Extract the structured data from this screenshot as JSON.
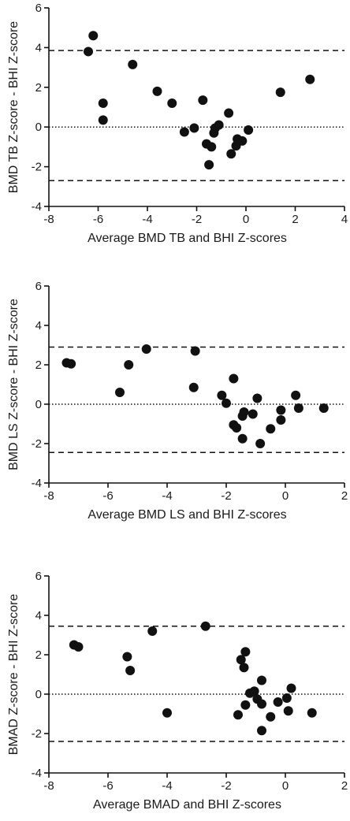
{
  "chart_data": [
    {
      "type": "scatter",
      "title": "",
      "xlabel": "Average BMD TB and BHI Z-scores",
      "ylabel": "BMD TB Z-score - BHI Z-score",
      "xlim": [
        -8,
        4
      ],
      "ylim": [
        -4,
        6
      ],
      "xticks": [
        -8,
        -6,
        -4,
        -2,
        0,
        2,
        4
      ],
      "yticks": [
        -4,
        -2,
        0,
        2,
        4,
        6
      ],
      "grid": false,
      "reference_lines": [
        {
          "y": 3.85,
          "style": "dashed"
        },
        {
          "y": 0,
          "style": "dotted"
        },
        {
          "y": -2.7,
          "style": "dashed"
        }
      ],
      "points": [
        {
          "x": -6.4,
          "y": 3.8
        },
        {
          "x": -6.2,
          "y": 4.6
        },
        {
          "x": -5.8,
          "y": 1.2
        },
        {
          "x": -5.8,
          "y": 0.35
        },
        {
          "x": -4.6,
          "y": 3.15
        },
        {
          "x": -3.6,
          "y": 1.8
        },
        {
          "x": -3.0,
          "y": 1.2
        },
        {
          "x": -2.5,
          "y": -0.25
        },
        {
          "x": -2.1,
          "y": -0.05
        },
        {
          "x": -1.75,
          "y": 1.35
        },
        {
          "x": -1.6,
          "y": -0.85
        },
        {
          "x": -1.5,
          "y": -1.9
        },
        {
          "x": -1.4,
          "y": -1.0
        },
        {
          "x": -1.3,
          "y": -0.3
        },
        {
          "x": -1.25,
          "y": -0.05
        },
        {
          "x": -1.1,
          "y": 0.1
        },
        {
          "x": -0.7,
          "y": 0.7
        },
        {
          "x": -0.6,
          "y": -1.35
        },
        {
          "x": -0.4,
          "y": -0.95
        },
        {
          "x": -0.35,
          "y": -0.6
        },
        {
          "x": -0.15,
          "y": -0.7
        },
        {
          "x": 0.1,
          "y": -0.15
        },
        {
          "x": 1.4,
          "y": 1.75
        },
        {
          "x": 2.6,
          "y": 2.4
        }
      ]
    },
    {
      "type": "scatter",
      "title": "",
      "xlabel": "Average BMD LS and BHI Z-scores",
      "ylabel": "BMD LS Z-score - BHI Z-score",
      "xlim": [
        -8,
        2
      ],
      "ylim": [
        -4,
        6
      ],
      "xticks": [
        -8,
        -6,
        -4,
        -2,
        0,
        2
      ],
      "yticks": [
        -4,
        -2,
        0,
        2,
        4,
        6
      ],
      "grid": false,
      "reference_lines": [
        {
          "y": 2.9,
          "style": "dashed"
        },
        {
          "y": 0,
          "style": "dotted"
        },
        {
          "y": -2.45,
          "style": "dashed"
        }
      ],
      "points": [
        {
          "x": -7.4,
          "y": 2.1
        },
        {
          "x": -7.25,
          "y": 2.05
        },
        {
          "x": -5.6,
          "y": 0.6
        },
        {
          "x": -5.3,
          "y": 2.0
        },
        {
          "x": -4.7,
          "y": 2.8
        },
        {
          "x": -3.1,
          "y": 0.85
        },
        {
          "x": -3.05,
          "y": 2.7
        },
        {
          "x": -2.15,
          "y": 0.45
        },
        {
          "x": -2.0,
          "y": 0.05
        },
        {
          "x": -1.75,
          "y": 1.3
        },
        {
          "x": -1.75,
          "y": -1.05
        },
        {
          "x": -1.65,
          "y": -1.2
        },
        {
          "x": -1.45,
          "y": -0.6
        },
        {
          "x": -1.4,
          "y": -0.4
        },
        {
          "x": -1.45,
          "y": -1.75
        },
        {
          "x": -1.1,
          "y": -0.5
        },
        {
          "x": -0.95,
          "y": 0.3
        },
        {
          "x": -0.85,
          "y": -2.0
        },
        {
          "x": -0.5,
          "y": -1.25
        },
        {
          "x": -0.15,
          "y": -0.3
        },
        {
          "x": -0.15,
          "y": -0.8
        },
        {
          "x": 0.35,
          "y": 0.45
        },
        {
          "x": 0.45,
          "y": -0.2
        },
        {
          "x": 1.3,
          "y": -0.2
        }
      ]
    },
    {
      "type": "scatter",
      "title": "",
      "xlabel": "Average BMAD and BHI Z-scores",
      "ylabel": "BMAD Z-score - BHI Z-score",
      "xlim": [
        -8,
        2
      ],
      "ylim": [
        -4,
        6
      ],
      "xticks": [
        -8,
        -6,
        -4,
        -2,
        0,
        2
      ],
      "yticks": [
        -4,
        -2,
        0,
        2,
        4,
        6
      ],
      "grid": false,
      "reference_lines": [
        {
          "y": 3.45,
          "style": "dashed"
        },
        {
          "y": 0,
          "style": "dotted"
        },
        {
          "y": -2.4,
          "style": "dashed"
        }
      ],
      "points": [
        {
          "x": -7.15,
          "y": 2.5
        },
        {
          "x": -7.0,
          "y": 2.4
        },
        {
          "x": -5.35,
          "y": 1.9
        },
        {
          "x": -5.25,
          "y": 1.2
        },
        {
          "x": -4.5,
          "y": 3.2
        },
        {
          "x": -4.0,
          "y": -0.95
        },
        {
          "x": -2.7,
          "y": 3.45
        },
        {
          "x": -1.6,
          "y": -1.05
        },
        {
          "x": -1.5,
          "y": 1.75
        },
        {
          "x": -1.4,
          "y": 1.35
        },
        {
          "x": -1.35,
          "y": 2.15
        },
        {
          "x": -1.35,
          "y": -0.55
        },
        {
          "x": -1.2,
          "y": 0.05
        },
        {
          "x": -1.05,
          "y": 0.15
        },
        {
          "x": -0.95,
          "y": -0.25
        },
        {
          "x": -0.8,
          "y": -0.5
        },
        {
          "x": -0.8,
          "y": 0.7
        },
        {
          "x": -0.8,
          "y": -1.85
        },
        {
          "x": -0.5,
          "y": -1.15
        },
        {
          "x": -0.25,
          "y": -0.4
        },
        {
          "x": 0.05,
          "y": -0.2
        },
        {
          "x": 0.1,
          "y": -0.85
        },
        {
          "x": 0.2,
          "y": 0.3
        },
        {
          "x": 0.9,
          "y": -0.95
        }
      ]
    }
  ]
}
